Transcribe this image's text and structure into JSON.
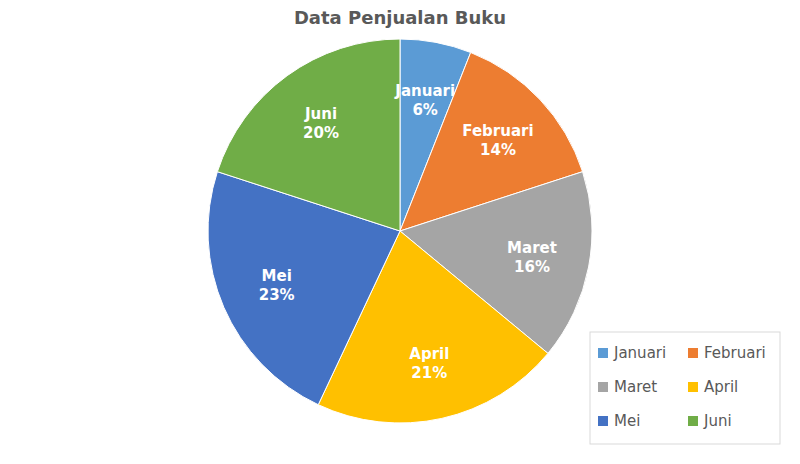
{
  "chart_data": {
    "type": "pie",
    "title": "Data Penjualan Buku",
    "categories": [
      "Januari",
      "Februari",
      "Maret",
      "April",
      "Mei",
      "Juni"
    ],
    "values": [
      6,
      14,
      16,
      21,
      23,
      20
    ],
    "value_labels": [
      "6%",
      "14%",
      "16%",
      "21%",
      "23%",
      "20%"
    ],
    "colors": [
      "#5b9bd5",
      "#ed7d31",
      "#a5a5a5",
      "#ffc000",
      "#4472c4",
      "#70ad47"
    ],
    "data_labels": true,
    "legend": "bottom-right"
  }
}
